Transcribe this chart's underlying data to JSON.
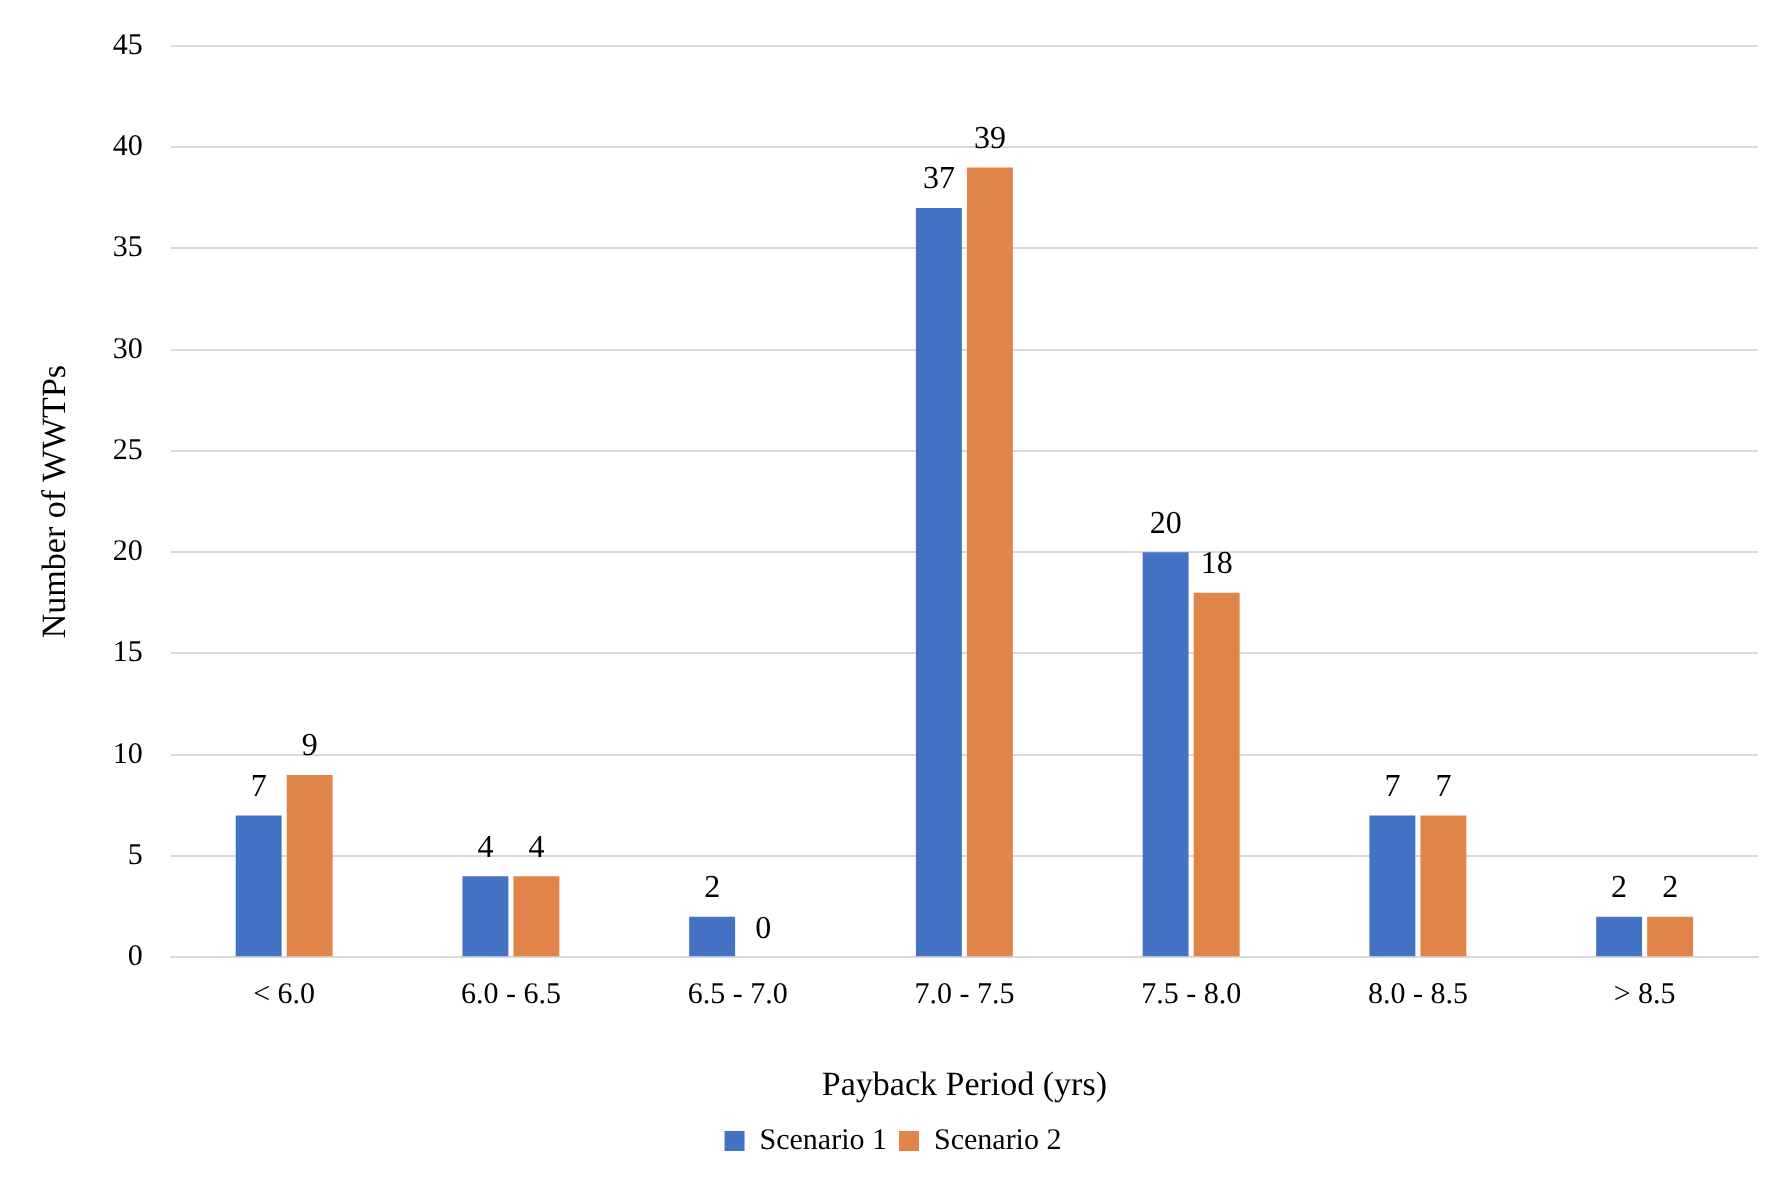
{
  "chart_data": {
    "type": "bar",
    "xlabel": "Payback Period (yrs)",
    "ylabel": "Number of WWTPs",
    "categories": [
      "< 6.0",
      "6.0 - 6.5",
      "6.5 - 7.0",
      "7.0 - 7.5",
      "7.5 - 8.0",
      "8.0 - 8.5",
      "> 8.5"
    ],
    "series": [
      {
        "name": "Scenario 1",
        "color": "#4472c4",
        "values": [
          7,
          4,
          2,
          37,
          20,
          7,
          2
        ]
      },
      {
        "name": "Scenario 2",
        "color": "#e0844a",
        "values": [
          9,
          4,
          0,
          39,
          18,
          7,
          2
        ]
      }
    ],
    "ylim": [
      0,
      45
    ],
    "yticks": [
      0,
      5,
      10,
      15,
      20,
      25,
      30,
      35,
      40,
      45
    ],
    "grid": "y",
    "legend": "bottom",
    "data_labels": true
  }
}
